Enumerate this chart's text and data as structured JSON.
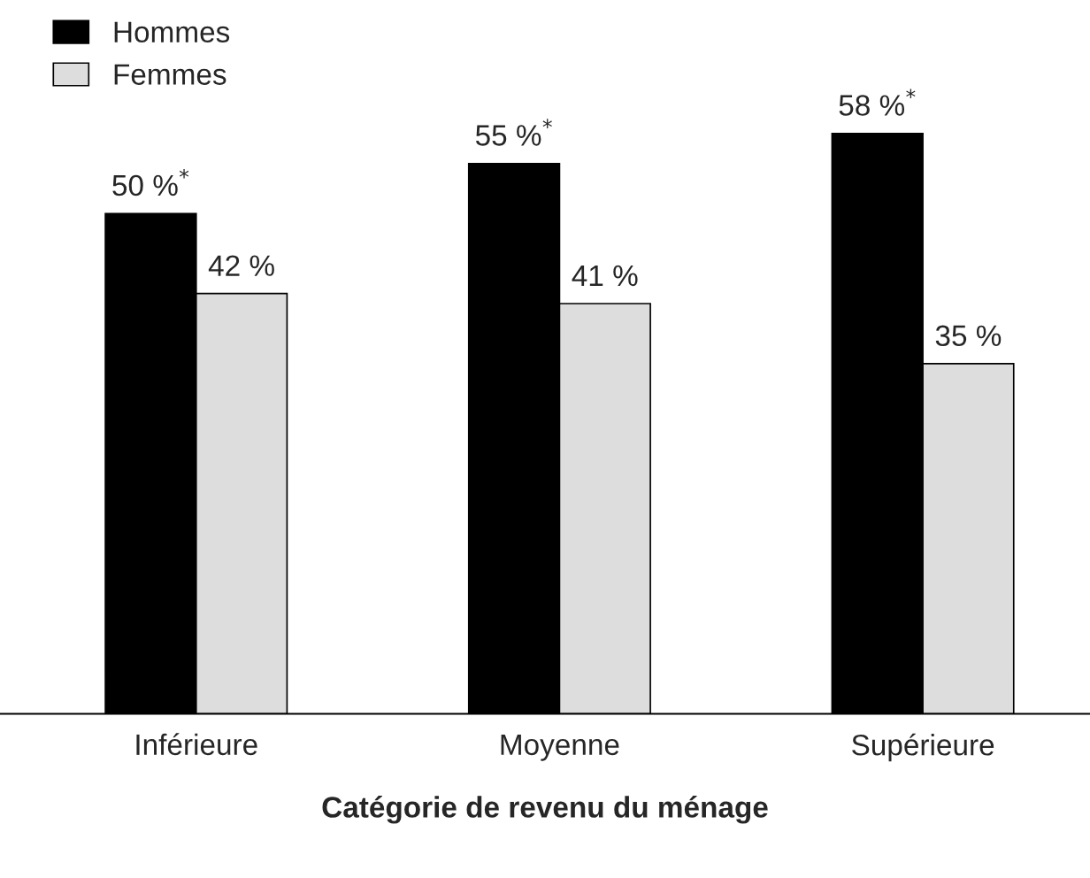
{
  "chart_data": {
    "type": "bar",
    "xlabel": "Catégorie de revenu du ménage",
    "categories": [
      "Inférieure",
      "Moyenne",
      "Supérieure"
    ],
    "series": [
      {
        "name": "Hommes",
        "color": "#000000",
        "values": [
          50,
          55,
          58
        ],
        "value_labels": [
          "50 %$^{*}$",
          "55 %$^{*}$",
          "58 %$^{*}$"
        ]
      },
      {
        "name": "Femmes",
        "color": "#dddddd",
        "values": [
          42,
          41,
          35
        ],
        "value_labels": [
          "42 %",
          "41 %",
          "35 %"
        ]
      }
    ],
    "legend": "top left",
    "grid": false
  }
}
